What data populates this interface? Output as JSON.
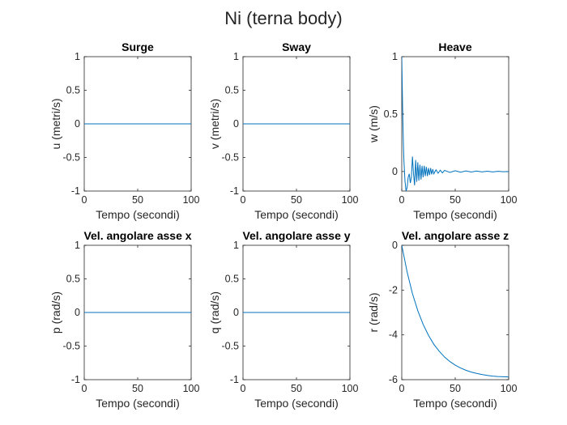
{
  "figure": {
    "title": "Ni (terna body)"
  },
  "colors": {
    "line": "#0072BD",
    "axis": "#262626",
    "background": "#ffffff"
  },
  "chart_data": [
    {
      "type": "line",
      "title": "Surge",
      "xlabel": "Tempo (secondi)",
      "ylabel": "u (metri/s)",
      "xlim": [
        0,
        100
      ],
      "ylim": [
        -1,
        1
      ],
      "xticks": [
        0,
        50,
        100
      ],
      "xtick_labels": [
        "0",
        "50",
        "100"
      ],
      "yticks": [
        -1,
        -0.5,
        0,
        0.5,
        1
      ],
      "ytick_labels": [
        "-1",
        "-0.5",
        "0",
        "0.5",
        "1"
      ],
      "grid": false,
      "series": [
        {
          "x": [
            0,
            100
          ],
          "y": [
            0,
            0
          ]
        }
      ]
    },
    {
      "type": "line",
      "title": "Sway",
      "xlabel": "Tempo (secondi)",
      "ylabel": "v (metri/s)",
      "xlim": [
        0,
        100
      ],
      "ylim": [
        -1,
        1
      ],
      "xticks": [
        0,
        50,
        100
      ],
      "xtick_labels": [
        "0",
        "50",
        "100"
      ],
      "yticks": [
        -1,
        -0.5,
        0,
        0.5,
        1
      ],
      "ytick_labels": [
        "-1",
        "-0.5",
        "0",
        "0.5",
        "1"
      ],
      "grid": false,
      "series": [
        {
          "x": [
            0,
            100
          ],
          "y": [
            0,
            0
          ]
        }
      ]
    },
    {
      "type": "line",
      "title": "Heave",
      "xlabel": "Tempo (secondi)",
      "ylabel": "w (m/s)",
      "xlim": [
        0,
        100
      ],
      "ylim": [
        -0.17,
        1
      ],
      "xticks": [
        0,
        50,
        100
      ],
      "xtick_labels": [
        "0",
        "50",
        "100"
      ],
      "yticks": [
        0,
        0.5,
        1
      ],
      "ytick_labels": [
        "0",
        "0.5",
        "1"
      ],
      "grid": false,
      "series": [
        {
          "x": [
            0,
            0.4,
            0.8,
            1.2,
            1.6,
            2,
            3,
            4,
            5,
            6,
            7,
            8,
            9,
            10,
            11,
            12,
            13,
            14,
            15,
            16,
            17,
            18,
            19,
            20,
            21,
            22,
            23,
            24,
            25,
            26,
            27,
            28,
            29,
            30,
            32,
            34,
            36,
            38,
            40,
            45,
            50,
            55,
            60,
            65,
            70,
            75,
            80,
            85,
            90,
            95,
            100
          ],
          "y": [
            1,
            0.78,
            0.55,
            0.38,
            0.22,
            0.1,
            -0.08,
            -0.17,
            -0.14,
            -0.05,
            -0.02,
            -0.1,
            -0.05,
            0.13,
            -0.02,
            -0.12,
            0.1,
            -0.09,
            0.08,
            -0.08,
            0.06,
            -0.07,
            0.05,
            -0.05,
            0.05,
            -0.04,
            0.04,
            -0.04,
            0.03,
            -0.03,
            0.03,
            -0.025,
            0.02,
            -0.02,
            0.015,
            -0.015,
            0.012,
            -0.012,
            0.01,
            -0.008,
            0.007,
            -0.006,
            0.005,
            -0.004,
            0.004,
            -0.003,
            0.003,
            -0.003,
            0.002,
            -0.002,
            0
          ]
        }
      ]
    },
    {
      "type": "line",
      "title": "Vel. angolare asse x",
      "xlabel": "Tempo (secondi)",
      "ylabel": "p (rad/s)",
      "xlim": [
        0,
        100
      ],
      "ylim": [
        -1,
        1
      ],
      "xticks": [
        0,
        50,
        100
      ],
      "xtick_labels": [
        "0",
        "50",
        "100"
      ],
      "yticks": [
        -1,
        -0.5,
        0,
        0.5,
        1
      ],
      "ytick_labels": [
        "-1",
        "-0.5",
        "0",
        "0.5",
        "1"
      ],
      "grid": false,
      "series": [
        {
          "x": [
            0,
            100
          ],
          "y": [
            0,
            0
          ]
        }
      ]
    },
    {
      "type": "line",
      "title": "Vel. angolare asse y",
      "xlabel": "Tempo (secondi)",
      "ylabel": "q (rad/s)",
      "xlim": [
        0,
        100
      ],
      "ylim": [
        -1,
        1
      ],
      "xticks": [
        0,
        50,
        100
      ],
      "xtick_labels": [
        "0",
        "50",
        "100"
      ],
      "yticks": [
        -1,
        -0.5,
        0,
        0.5,
        1
      ],
      "ytick_labels": [
        "-1",
        "-0.5",
        "0",
        "0.5",
        "1"
      ],
      "grid": false,
      "series": [
        {
          "x": [
            0,
            100
          ],
          "y": [
            0,
            0
          ]
        }
      ]
    },
    {
      "type": "line",
      "title": "Vel. angolare asse z",
      "xlabel": "Tempo (secondi)",
      "ylabel": "r (rad/s)",
      "xlim": [
        0,
        100
      ],
      "ylim": [
        -6,
        0
      ],
      "xticks": [
        0,
        50,
        100
      ],
      "xtick_labels": [
        "0",
        "50",
        "100"
      ],
      "yticks": [
        -6,
        -4,
        -2,
        0
      ],
      "ytick_labels": [
        "-6",
        "-4",
        "-2",
        "0"
      ],
      "grid": false,
      "series": [
        {
          "x": [
            0,
            5,
            10,
            15,
            20,
            25,
            30,
            35,
            40,
            45,
            50,
            55,
            60,
            65,
            70,
            75,
            80,
            85,
            90,
            95,
            100
          ],
          "y": [
            0,
            -1.19,
            -2.16,
            -2.92,
            -3.53,
            -4.02,
            -4.42,
            -4.73,
            -4.99,
            -5.19,
            -5.35,
            -5.48,
            -5.58,
            -5.66,
            -5.72,
            -5.77,
            -5.81,
            -5.84,
            -5.86,
            -5.87,
            -5.88
          ]
        }
      ]
    }
  ]
}
